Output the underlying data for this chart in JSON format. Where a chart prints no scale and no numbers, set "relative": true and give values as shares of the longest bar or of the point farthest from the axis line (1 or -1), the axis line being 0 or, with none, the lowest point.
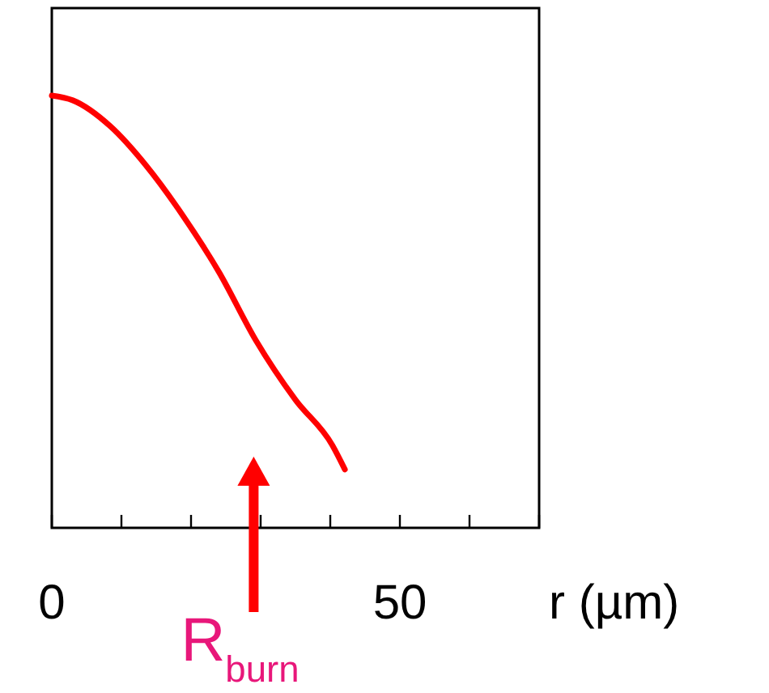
{
  "chart_data": {
    "type": "line",
    "relative": true,
    "xlabel": "r (µm)",
    "xlim": [
      0,
      70
    ],
    "xticks": [
      0,
      {
        "value": 10,
        "label": null
      },
      {
        "value": 20,
        "label": null
      },
      {
        "value": 30,
        "label": null
      },
      {
        "value": 40,
        "label": null
      },
      50,
      {
        "value": 60,
        "label": null
      },
      {
        "value": 70,
        "label": null
      }
    ],
    "x": [
      0,
      3,
      8.4,
      13.5,
      18.8,
      24,
      29.3,
      35,
      40.3,
      42.1
    ],
    "series": [
      {
        "color": "#ff0000",
        "values": [
          1,
          0.989,
          0.929,
          0.839,
          0.723,
          0.592,
          0.434,
          0.296,
          0.191,
          0.135
        ]
      }
    ],
    "annotations": [
      {
        "text": "R$_{burn}$",
        "x": 29
      }
    ],
    "marker": "none",
    "line_style": "solid"
  }
}
